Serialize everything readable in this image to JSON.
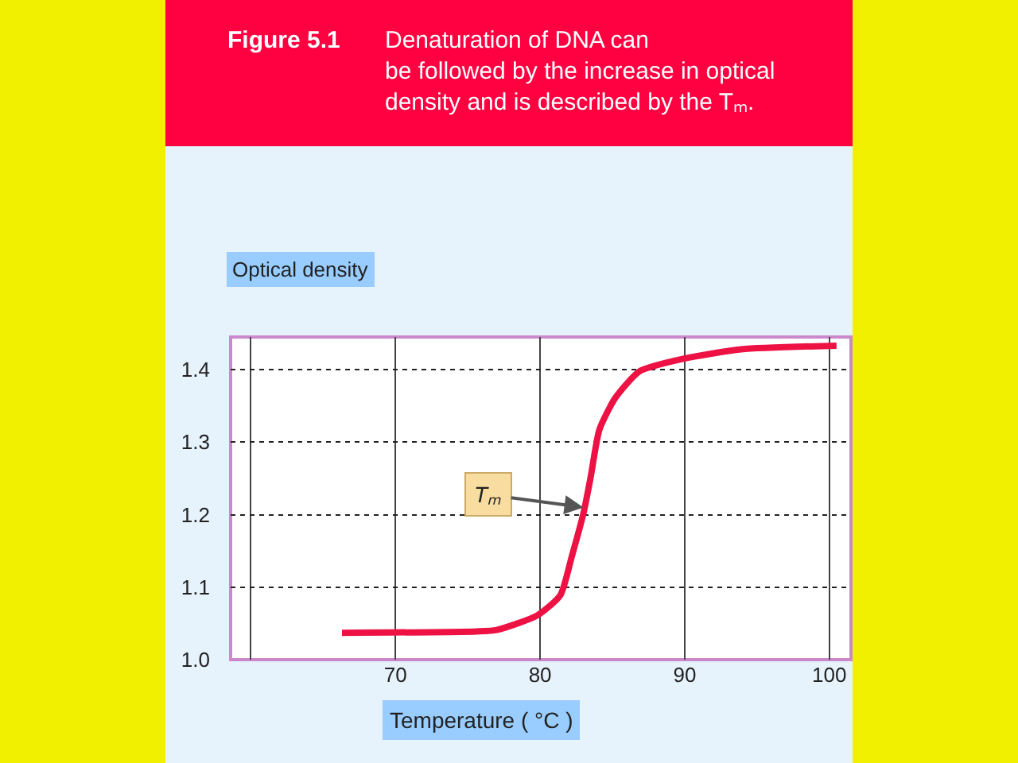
{
  "chart_data": {
    "type": "line",
    "title": "Figure 5.1",
    "subtitle": "Denaturation of DNA can be followed by the increase in optical density and is described by the Tₘ.",
    "xlabel": "Temperature ( °C )",
    "ylabel": "Optical density",
    "x": [
      66.3,
      75.6,
      77.0,
      79.8,
      81.4,
      82.2,
      83.0,
      83.5,
      84.1,
      85.2,
      86.9,
      89.9,
      93.9,
      100.5
    ],
    "series": [
      {
        "color": "#ee1144",
        "values": [
          1.037,
          1.039,
          1.041,
          1.061,
          1.089,
          1.143,
          1.202,
          1.252,
          1.317,
          1.361,
          1.398,
          1.415,
          1.428,
          1.433
        ]
      }
    ],
    "xlim": [
      58.6,
      101.5
    ],
    "ylim": [
      1.0,
      1.445
    ],
    "xticks": [
      {
        "value": 60,
        "label": null
      },
      70,
      80,
      90,
      100
    ],
    "yticks": [
      {
        "value": 1.0,
        "label": "1.0"
      },
      1.1,
      1.2,
      1.3,
      1.4
    ],
    "annotations": [
      {
        "text": "Tₘ",
        "x": 83.0,
        "y": 1.21
      }
    ],
    "grid": true,
    "marker": "none",
    "line_style": "solid"
  }
}
